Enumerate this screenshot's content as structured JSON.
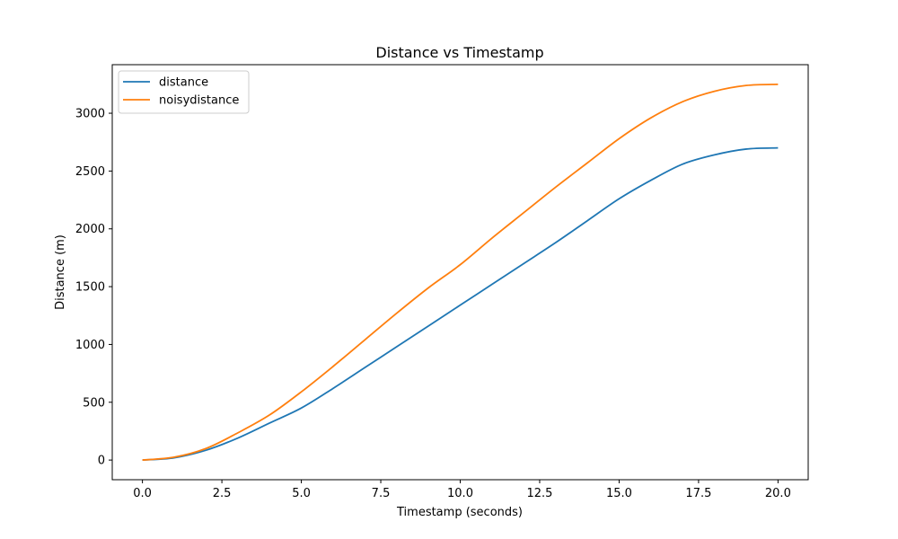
{
  "chart_data": {
    "type": "line",
    "title": "Distance vs Timestamp",
    "xlabel": "Timestamp (seconds)",
    "ylabel": "Distance (m)",
    "xlim": [
      -0.95,
      20.95
    ],
    "ylim": [
      -170,
      3420
    ],
    "xticks": [
      0.0,
      2.5,
      5.0,
      7.5,
      10.0,
      12.5,
      15.0,
      17.5,
      20.0
    ],
    "xtick_labels": [
      "0.0",
      "2.5",
      "5.0",
      "7.5",
      "10.0",
      "12.5",
      "15.0",
      "17.5",
      "20.0"
    ],
    "yticks": [
      0,
      500,
      1000,
      1500,
      2000,
      2500,
      3000
    ],
    "ytick_labels": [
      "0",
      "500",
      "1000",
      "1500",
      "2000",
      "2500",
      "3000"
    ],
    "grid": false,
    "legend_position": "top-left",
    "x": [
      0,
      1,
      2,
      3,
      4,
      5,
      6,
      7,
      8,
      9,
      10,
      11,
      12,
      13,
      14,
      15,
      16,
      17,
      18,
      19,
      20
    ],
    "series": [
      {
        "name": "distance",
        "color": "#1f77b4",
        "values": [
          0,
          20,
          85,
          190,
          320,
          450,
          620,
          800,
          980,
          1160,
          1340,
          1520,
          1700,
          1880,
          2070,
          2260,
          2420,
          2560,
          2640,
          2690,
          2700
        ]
      },
      {
        "name": "noisydistance",
        "color": "#ff7f0e",
        "values": [
          0,
          25,
          100,
          235,
          390,
          590,
          810,
          1040,
          1270,
          1490,
          1690,
          1920,
          2140,
          2360,
          2570,
          2780,
          2960,
          3100,
          3190,
          3240,
          3250
        ]
      }
    ]
  }
}
